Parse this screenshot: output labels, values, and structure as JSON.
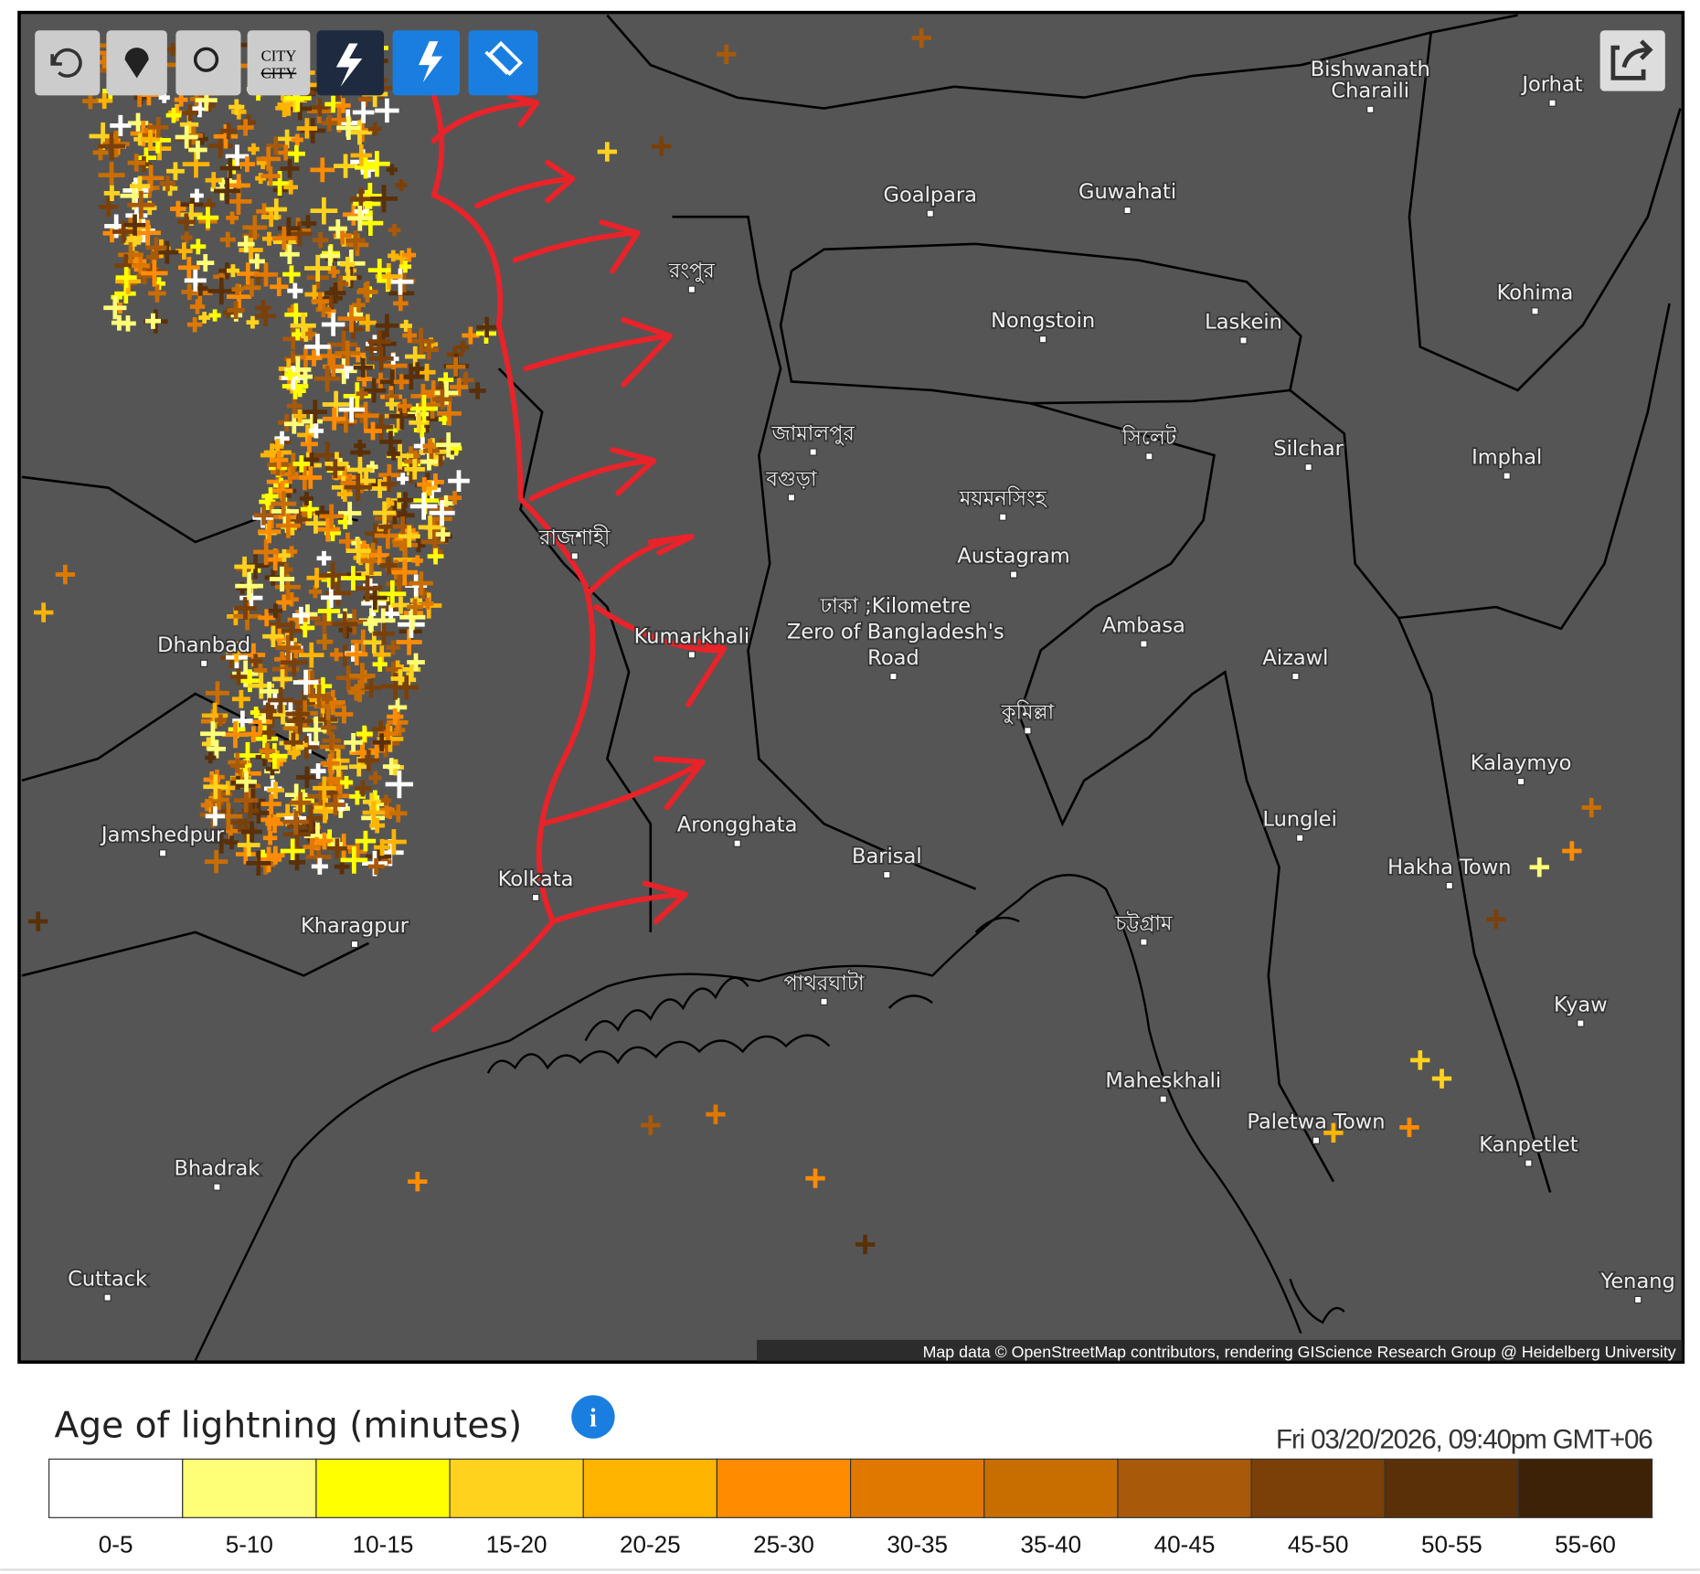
{
  "toolbar": {
    "city_top": "CITY",
    "city_bottom": "CITY"
  },
  "cities": [
    "Bishwanath",
    "Charaili",
    "Jorhat",
    "Goalpara",
    "Guwahati",
    "Kohima",
    "Nongstoin",
    "Laskein",
    "Silchar",
    "Imphal",
    "Austagram",
    "Ambasa",
    "Aizawl",
    "Dhanbad",
    "Kumarkhali",
    "ঢাকা ;Kilometre",
    "Zero of Bangladesh's",
    "Road",
    "Kalaymyo",
    "Jamshedpur",
    "Arongghata",
    "Barisal",
    "Lunglei",
    "Hakha Town",
    "Kolkata",
    "Kharagpur",
    "Kyaw",
    "Maheskhali",
    "Paletwa Town",
    "Kanpetlet",
    "Bhadrak",
    "Cuttack",
    "Yenang",
    "রংপুর",
    "জামালপুর",
    "বগুড়া",
    "ময়মনসিংহ",
    "সিলেট",
    "রাজশাহী",
    "কুমিল্লা",
    "চট্টগ্রাম",
    "পাথরঘাটা"
  ],
  "attribution": "Map data © OpenStreetMap contributors, rendering GIScience Research Group @ Heidelberg University",
  "legend": {
    "title": "Age of lightning (minutes)",
    "timestamp": "Fri 03/20/2026, 09:40pm GMT+06",
    "bins": [
      {
        "label": "0-5",
        "color": "#ffffff"
      },
      {
        "label": "5-10",
        "color": "#ffff77"
      },
      {
        "label": "10-15",
        "color": "#ffff00"
      },
      {
        "label": "15-20",
        "color": "#ffd21e"
      },
      {
        "label": "20-25",
        "color": "#ffb400"
      },
      {
        "label": "25-30",
        "color": "#ff8c00"
      },
      {
        "label": "30-35",
        "color": "#e07800"
      },
      {
        "label": "35-40",
        "color": "#c86e00"
      },
      {
        "label": "40-45",
        "color": "#a85a0a"
      },
      {
        "label": "45-50",
        "color": "#7a4008"
      },
      {
        "label": "50-55",
        "color": "#5a3008"
      },
      {
        "label": "55-60",
        "color": "#3e2208"
      }
    ]
  }
}
